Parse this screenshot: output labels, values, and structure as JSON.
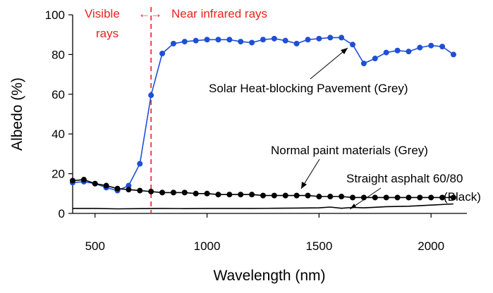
{
  "chart_data": {
    "type": "line",
    "xlabel": "Wavelength  (nm)",
    "ylabel": "Albedo  (%)",
    "xlim": [
      400,
      2160
    ],
    "ylim": [
      0,
      100
    ],
    "xticks": [
      500,
      1000,
      1500,
      2000
    ],
    "yticks": [
      0,
      20,
      40,
      60,
      80,
      100
    ],
    "grid": false,
    "series": [
      {
        "name": "Solar Heat-blocking Pavement (Grey)",
        "color": "#1f4fd6",
        "marker": "circle",
        "x": [
          400,
          450,
          500,
          550,
          600,
          650,
          700,
          750,
          800,
          850,
          900,
          950,
          1000,
          1050,
          1100,
          1150,
          1200,
          1250,
          1300,
          1350,
          1400,
          1450,
          1500,
          1550,
          1600,
          1650,
          1700,
          1750,
          1800,
          1850,
          1900,
          1950,
          2000,
          2050,
          2100
        ],
        "y": [
          15.5,
          16,
          15,
          13,
          11.5,
          14,
          25,
          59.5,
          80.5,
          85.5,
          86.5,
          87,
          87.5,
          87.5,
          87.5,
          86.5,
          86,
          87.5,
          88,
          87,
          85.5,
          87.5,
          88,
          88.5,
          88.5,
          85,
          75.5,
          78,
          81,
          82,
          81.5,
          83.5,
          84.5,
          84,
          80
        ]
      },
      {
        "name": "Normal paint materials (Grey)",
        "color": "#000000",
        "marker": "circle",
        "x": [
          400,
          450,
          500,
          550,
          600,
          650,
          700,
          750,
          800,
          850,
          900,
          950,
          1000,
          1050,
          1100,
          1150,
          1200,
          1250,
          1300,
          1350,
          1400,
          1450,
          1500,
          1550,
          1600,
          1650,
          1700,
          1750,
          1800,
          1850,
          1900,
          1950,
          2000,
          2050,
          2100
        ],
        "y": [
          16.5,
          17,
          15,
          14,
          12.5,
          12,
          11.5,
          11,
          10.5,
          10.5,
          10.5,
          10,
          10,
          9.5,
          9.5,
          9.5,
          9.5,
          9,
          9,
          9,
          9,
          9,
          8.5,
          8.5,
          8.5,
          8,
          8,
          8,
          8,
          8,
          8,
          8,
          8,
          8,
          8
        ]
      },
      {
        "name": "Straight asphalt 60/80 (Black)",
        "color": "#000000",
        "marker": "none",
        "x": [
          400,
          500,
          600,
          700,
          800,
          900,
          1000,
          1100,
          1200,
          1300,
          1400,
          1500,
          1550,
          1600,
          1650,
          1700,
          1750,
          1800,
          1900,
          2000,
          2100
        ],
        "y": [
          2.5,
          2.5,
          2.3,
          2.4,
          2.5,
          2.4,
          2.5,
          2.5,
          2.5,
          2.6,
          2.7,
          2.8,
          3.2,
          2.6,
          3.0,
          2.8,
          3.1,
          3.4,
          3.6,
          4.2,
          4.8
        ]
      }
    ],
    "divider_x": 750,
    "annotations": {
      "visible": [
        "Visible",
        "rays"
      ],
      "arrow": "←→",
      "near_ir": "Near infrared rays",
      "solar": "Solar Heat-blocking Pavement (Grey)",
      "paint": "Normal paint materials (Grey)",
      "asphalt": [
        "Straight asphalt 60/80",
        "(Black)"
      ]
    }
  }
}
